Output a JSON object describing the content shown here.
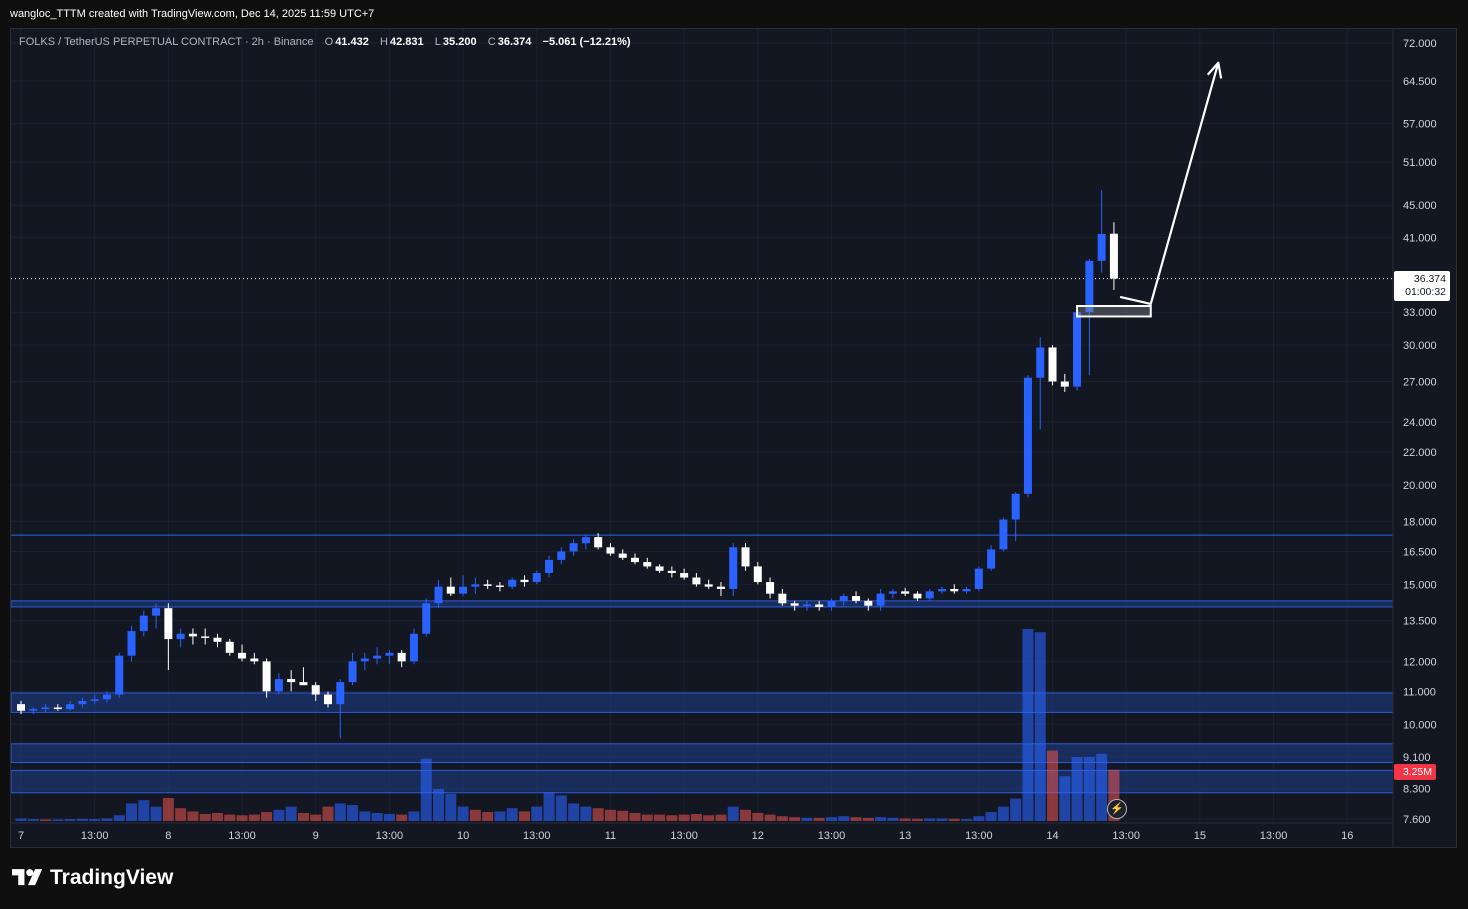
{
  "caption": "wangloc_TTTM created with TradingView.com, Dec 14, 2025 11:59 UTC+7",
  "symbol": {
    "name": "FOLKS / TetherUS PERPETUAL CONTRACT · 2h · Binance",
    "o_label": "O",
    "o_value": "41.432",
    "h_label": "H",
    "h_value": "42.831",
    "l_label": "L",
    "l_value": "35.200",
    "c_label": "C",
    "c_value": "36.374",
    "change": "−5.061 (−12.21%)"
  },
  "last_price": {
    "price": "36.374",
    "countdown": "01:00:32"
  },
  "volume_label": "3.25M",
  "footer": {
    "brand": "TradingView"
  },
  "colors": {
    "background": "#131722",
    "bull": "#2962ff",
    "bear": "#ffffff",
    "zone": "#1e3f8a",
    "volume_up": "#2962ff",
    "volume_down": "#ef5350"
  },
  "icons": {
    "logo": "tradingview-logo-icon",
    "bolt": "lightning-icon"
  },
  "chart_data": {
    "type": "candlestick",
    "scale": "log",
    "y_ticks": [
      "72.000",
      "64.500",
      "57.000",
      "51.000",
      "45.000",
      "41.000",
      "33.000",
      "30.000",
      "27.000",
      "24.000",
      "22.000",
      "20.000",
      "18.000",
      "16.500",
      "15.000",
      "13.500",
      "12.000",
      "11.000",
      "10.000",
      "9.100",
      "8.300",
      "7.600"
    ],
    "x_ticks": [
      {
        "label": "7",
        "bar": 0
      },
      {
        "label": "13:00",
        "bar": 6
      },
      {
        "label": "8",
        "bar": 12
      },
      {
        "label": "13:00",
        "bar": 18
      },
      {
        "label": "9",
        "bar": 24
      },
      {
        "label": "13:00",
        "bar": 30
      },
      {
        "label": "10",
        "bar": 36
      },
      {
        "label": "13:00",
        "bar": 42
      },
      {
        "label": "11",
        "bar": 48
      },
      {
        "label": "13:00",
        "bar": 54
      },
      {
        "label": "12",
        "bar": 60
      },
      {
        "label": "13:00",
        "bar": 66
      },
      {
        "label": "13",
        "bar": 72
      },
      {
        "label": "13:00",
        "bar": 78
      },
      {
        "label": "14",
        "bar": 84
      },
      {
        "label": "13:00",
        "bar": 90
      },
      {
        "label": "15",
        "bar": 96
      },
      {
        "label": "13:00",
        "bar": 102
      },
      {
        "label": "16",
        "bar": 108
      }
    ],
    "candles": [
      [
        10.6,
        10.7,
        10.3,
        10.4
      ],
      [
        10.4,
        10.5,
        10.3,
        10.45
      ],
      [
        10.45,
        10.6,
        10.35,
        10.5
      ],
      [
        10.5,
        10.6,
        10.4,
        10.45
      ],
      [
        10.45,
        10.7,
        10.4,
        10.6
      ],
      [
        10.6,
        10.8,
        10.5,
        10.7
      ],
      [
        10.7,
        10.9,
        10.6,
        10.75
      ],
      [
        10.75,
        11.0,
        10.65,
        10.9
      ],
      [
        10.9,
        12.3,
        10.8,
        12.2
      ],
      [
        12.2,
        13.3,
        12.0,
        13.1
      ],
      [
        13.1,
        13.9,
        12.9,
        13.7
      ],
      [
        13.7,
        14.2,
        13.2,
        14.0
      ],
      [
        14.0,
        14.2,
        11.7,
        12.8
      ],
      [
        12.8,
        13.2,
        12.5,
        13.0
      ],
      [
        13.0,
        13.2,
        12.6,
        12.9
      ],
      [
        12.9,
        13.2,
        12.6,
        12.85
      ],
      [
        12.85,
        13.0,
        12.5,
        12.7
      ],
      [
        12.7,
        12.8,
        12.2,
        12.3
      ],
      [
        12.3,
        12.6,
        12.0,
        12.1
      ],
      [
        12.1,
        12.3,
        11.9,
        12.0
      ],
      [
        12.0,
        12.1,
        10.8,
        11.0
      ],
      [
        11.0,
        11.6,
        10.9,
        11.4
      ],
      [
        11.4,
        11.7,
        11.0,
        11.3
      ],
      [
        11.3,
        11.8,
        11.2,
        11.2
      ],
      [
        11.2,
        11.3,
        10.7,
        10.9
      ],
      [
        10.9,
        11.0,
        10.5,
        10.6
      ],
      [
        10.6,
        11.4,
        9.6,
        11.3
      ],
      [
        11.3,
        12.3,
        11.2,
        12.0
      ],
      [
        12.0,
        12.3,
        11.7,
        12.1
      ],
      [
        12.1,
        12.5,
        11.9,
        12.2
      ],
      [
        12.2,
        12.4,
        11.9,
        12.3
      ],
      [
        12.3,
        12.4,
        11.8,
        12.0
      ],
      [
        12.0,
        13.2,
        11.9,
        13.0
      ],
      [
        13.0,
        14.4,
        12.9,
        14.2
      ],
      [
        14.2,
        15.2,
        14.0,
        14.9
      ],
      [
        14.9,
        15.3,
        14.5,
        14.6
      ],
      [
        14.6,
        15.4,
        14.5,
        14.9
      ],
      [
        14.9,
        15.3,
        14.6,
        15.0
      ],
      [
        15.0,
        15.2,
        14.8,
        14.95
      ],
      [
        14.95,
        15.1,
        14.7,
        14.9
      ],
      [
        14.9,
        15.3,
        14.8,
        15.2
      ],
      [
        15.2,
        15.4,
        14.9,
        15.1
      ],
      [
        15.1,
        15.6,
        15.0,
        15.5
      ],
      [
        15.5,
        16.3,
        15.3,
        16.1
      ],
      [
        16.1,
        16.7,
        15.9,
        16.5
      ],
      [
        16.5,
        17.1,
        16.3,
        16.9
      ],
      [
        16.9,
        17.3,
        16.6,
        17.2
      ],
      [
        17.2,
        17.4,
        16.6,
        16.7
      ],
      [
        16.7,
        16.9,
        16.3,
        16.4
      ],
      [
        16.4,
        16.6,
        16.1,
        16.2
      ],
      [
        16.2,
        16.4,
        15.9,
        16.0
      ],
      [
        16.0,
        16.2,
        15.7,
        15.8
      ],
      [
        15.8,
        15.9,
        15.5,
        15.6
      ],
      [
        15.6,
        15.8,
        15.3,
        15.5
      ],
      [
        15.5,
        15.7,
        15.2,
        15.3
      ],
      [
        15.3,
        15.5,
        14.9,
        15.0
      ],
      [
        15.0,
        15.2,
        14.8,
        14.9
      ],
      [
        14.9,
        15.1,
        14.5,
        14.8
      ],
      [
        14.8,
        16.9,
        14.5,
        16.7
      ],
      [
        16.7,
        16.9,
        15.6,
        15.8
      ],
      [
        15.8,
        16.0,
        15.0,
        15.1
      ],
      [
        15.1,
        15.3,
        14.4,
        14.6
      ],
      [
        14.6,
        14.8,
        14.1,
        14.2
      ],
      [
        14.2,
        14.3,
        13.9,
        14.1
      ],
      [
        14.1,
        14.3,
        13.9,
        14.15
      ],
      [
        14.15,
        14.3,
        13.9,
        14.05
      ],
      [
        14.05,
        14.4,
        13.9,
        14.3
      ],
      [
        14.3,
        14.6,
        14.1,
        14.5
      ],
      [
        14.5,
        14.7,
        14.2,
        14.3
      ],
      [
        14.3,
        14.4,
        13.9,
        14.1
      ],
      [
        14.1,
        14.8,
        13.9,
        14.6
      ],
      [
        14.6,
        14.8,
        14.4,
        14.7
      ],
      [
        14.7,
        14.85,
        14.5,
        14.6
      ],
      [
        14.6,
        14.7,
        14.3,
        14.4
      ],
      [
        14.4,
        14.8,
        14.3,
        14.7
      ],
      [
        14.7,
        14.9,
        14.6,
        14.8
      ],
      [
        14.8,
        15.0,
        14.6,
        14.7
      ],
      [
        14.7,
        14.9,
        14.6,
        14.8
      ],
      [
        14.8,
        15.8,
        14.7,
        15.7
      ],
      [
        15.7,
        16.8,
        15.6,
        16.6
      ],
      [
        16.6,
        18.2,
        16.5,
        18.1
      ],
      [
        18.1,
        19.6,
        17.0,
        19.5
      ],
      [
        19.5,
        27.5,
        19.3,
        27.3
      ],
      [
        27.3,
        30.7,
        23.5,
        29.8
      ],
      [
        29.8,
        30.0,
        26.7,
        27.0
      ],
      [
        27.0,
        27.6,
        26.2,
        26.6
      ],
      [
        26.6,
        33.5,
        26.3,
        33.0
      ],
      [
        33.0,
        38.5,
        27.5,
        38.3
      ],
      [
        38.3,
        47.0,
        37.0,
        41.4
      ],
      [
        41.432,
        42.831,
        35.2,
        36.374
      ]
    ],
    "volumes": [
      [
        0.08,
        "up"
      ],
      [
        0.06,
        "up"
      ],
      [
        0.05,
        "down"
      ],
      [
        0.05,
        "up"
      ],
      [
        0.06,
        "up"
      ],
      [
        0.07,
        "up"
      ],
      [
        0.06,
        "up"
      ],
      [
        0.08,
        "up"
      ],
      [
        0.18,
        "up"
      ],
      [
        0.55,
        "up"
      ],
      [
        0.65,
        "up"
      ],
      [
        0.45,
        "up"
      ],
      [
        0.72,
        "down"
      ],
      [
        0.4,
        "down"
      ],
      [
        0.3,
        "down"
      ],
      [
        0.22,
        "down"
      ],
      [
        0.25,
        "down"
      ],
      [
        0.2,
        "down"
      ],
      [
        0.18,
        "down"
      ],
      [
        0.2,
        "down"
      ],
      [
        0.28,
        "down"
      ],
      [
        0.35,
        "up"
      ],
      [
        0.45,
        "up"
      ],
      [
        0.25,
        "down"
      ],
      [
        0.2,
        "down"
      ],
      [
        0.45,
        "down"
      ],
      [
        0.55,
        "up"
      ],
      [
        0.5,
        "up"
      ],
      [
        0.3,
        "up"
      ],
      [
        0.25,
        "up"
      ],
      [
        0.22,
        "up"
      ],
      [
        0.2,
        "down"
      ],
      [
        0.3,
        "up"
      ],
      [
        1.95,
        "up"
      ],
      [
        1.0,
        "up"
      ],
      [
        0.85,
        "up"
      ],
      [
        0.45,
        "up"
      ],
      [
        0.35,
        "down"
      ],
      [
        0.28,
        "down"
      ],
      [
        0.3,
        "up"
      ],
      [
        0.4,
        "up"
      ],
      [
        0.3,
        "down"
      ],
      [
        0.45,
        "up"
      ],
      [
        0.9,
        "up"
      ],
      [
        0.8,
        "up"
      ],
      [
        0.55,
        "up"
      ],
      [
        0.45,
        "up"
      ],
      [
        0.4,
        "down"
      ],
      [
        0.35,
        "down"
      ],
      [
        0.32,
        "down"
      ],
      [
        0.25,
        "down"
      ],
      [
        0.2,
        "down"
      ],
      [
        0.2,
        "down"
      ],
      [
        0.18,
        "down"
      ],
      [
        0.2,
        "down"
      ],
      [
        0.22,
        "down"
      ],
      [
        0.18,
        "down"
      ],
      [
        0.2,
        "down"
      ],
      [
        0.45,
        "up"
      ],
      [
        0.35,
        "down"
      ],
      [
        0.25,
        "down"
      ],
      [
        0.2,
        "down"
      ],
      [
        0.15,
        "down"
      ],
      [
        0.12,
        "down"
      ],
      [
        0.1,
        "up"
      ],
      [
        0.1,
        "down"
      ],
      [
        0.12,
        "up"
      ],
      [
        0.15,
        "up"
      ],
      [
        0.12,
        "down"
      ],
      [
        0.1,
        "down"
      ],
      [
        0.12,
        "up"
      ],
      [
        0.1,
        "up"
      ],
      [
        0.08,
        "down"
      ],
      [
        0.07,
        "down"
      ],
      [
        0.08,
        "up"
      ],
      [
        0.08,
        "up"
      ],
      [
        0.07,
        "down"
      ],
      [
        0.06,
        "up"
      ],
      [
        0.15,
        "up"
      ],
      [
        0.28,
        "up"
      ],
      [
        0.45,
        "up"
      ],
      [
        0.7,
        "up"
      ],
      [
        6.0,
        "up"
      ],
      [
        5.9,
        "up"
      ],
      [
        2.2,
        "down"
      ],
      [
        1.4,
        "up"
      ],
      [
        2.0,
        "up"
      ],
      [
        2.0,
        "up"
      ],
      [
        2.1,
        "up"
      ],
      [
        1.6,
        "down"
      ]
    ],
    "zones": [
      {
        "low": 14.05,
        "high": 14.3
      },
      {
        "low": 10.35,
        "high": 10.95
      },
      {
        "low": 8.95,
        "high": 9.45
      },
      {
        "low": 8.2,
        "high": 8.75
      }
    ],
    "resistance_line": 17.3,
    "last_price_line": 36.374,
    "target_box": {
      "low": 32.6,
      "high": 33.6,
      "from_bar": 86,
      "to_bar": 92
    },
    "projection": [
      {
        "bar": 89.5,
        "price": 34.5
      },
      {
        "bar": 92.0,
        "price": 33.8
      },
      {
        "bar": 97.5,
        "price": 68.0
      }
    ]
  }
}
